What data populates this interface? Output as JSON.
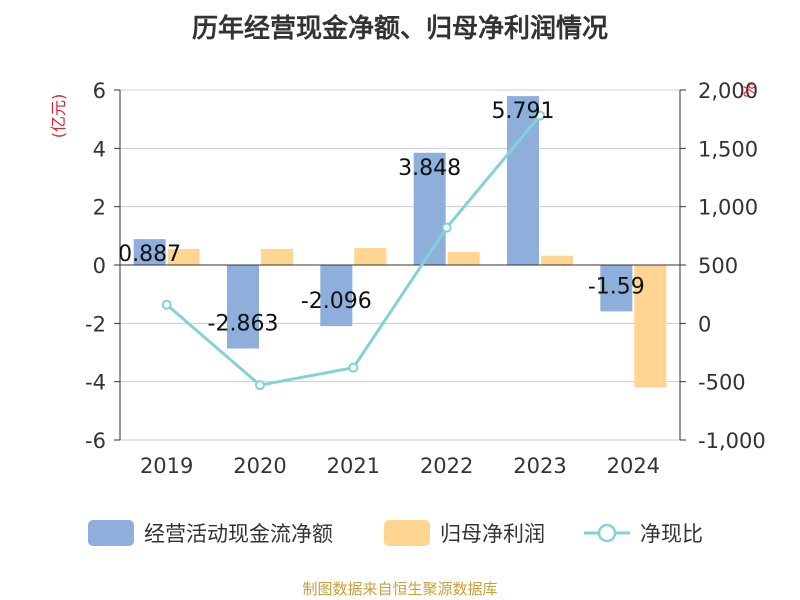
{
  "title": "历年经营现金净额、归母净利润情况",
  "source_note": "制图数据来自恒生聚源数据库",
  "chart_data": {
    "type": "bar",
    "categories": [
      "2019",
      "2020",
      "2021",
      "2022",
      "2023",
      "2024"
    ],
    "left_axis": {
      "unit_label": "(亿元)",
      "range": [
        -6,
        6
      ],
      "ticks": [
        "-6",
        "-4",
        "-2",
        "0",
        "2",
        "4",
        "6"
      ]
    },
    "right_axis": {
      "unit_label": "%",
      "range": [
        -1000,
        2000
      ],
      "ticks": [
        "-1,000",
        "-500",
        "0",
        "500",
        "1,000",
        "1,500",
        "2,000"
      ]
    },
    "series": [
      {
        "name": "经营活动现金流净额",
        "type": "bar",
        "axis": "left",
        "color": "#8eaedb",
        "values": [
          0.887,
          -2.863,
          -2.096,
          3.848,
          5.791,
          -1.59
        ],
        "labels": [
          "0.887",
          "-2.863",
          "-2.096",
          "3.848",
          "5.791",
          "-1.59"
        ]
      },
      {
        "name": "归母净利润",
        "type": "bar",
        "axis": "left",
        "color": "#ffd591",
        "values": [
          0.55,
          0.55,
          0.58,
          0.45,
          0.32,
          -4.2
        ]
      },
      {
        "name": "净现比",
        "type": "line",
        "axis": "right",
        "color": "#84d2d8",
        "values": [
          160,
          -530,
          -380,
          820,
          1780,
          null
        ]
      }
    ],
    "grid": true,
    "legend_position": "bottom"
  }
}
